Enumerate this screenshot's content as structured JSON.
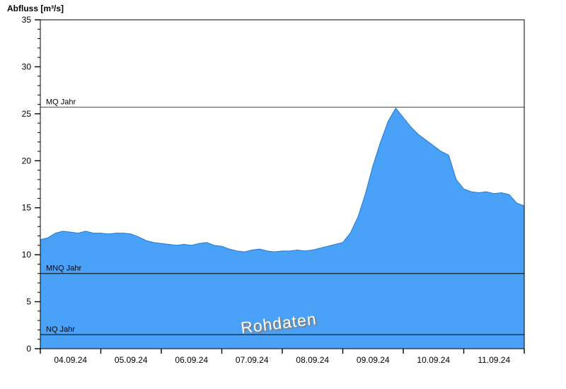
{
  "chart_data": {
    "type": "area",
    "title": "Abfluss [m³/s]",
    "watermark": "Rohdaten",
    "xlabel": "",
    "ylabel": "Abfluss [m³/s]",
    "ylim": [
      0,
      35
    ],
    "y_major_step": 5,
    "y_minor_step": 1,
    "y_tick_labels": [
      "0",
      "5",
      "10",
      "15",
      "20",
      "25",
      "30",
      "35"
    ],
    "x_day_labels": [
      "04.09.24",
      "05.09.24",
      "06.09.24",
      "07.09.24",
      "08.09.24",
      "09.09.24",
      "10.09.24",
      "11.09.24"
    ],
    "days": 8,
    "points_per_day": 8,
    "grid": false,
    "legend": "none",
    "series": [
      {
        "name": "Abfluss Rohdaten",
        "values": [
          11.6,
          11.8,
          12.3,
          12.5,
          12.4,
          12.3,
          12.5,
          12.3,
          12.3,
          12.2,
          12.3,
          12.3,
          12.2,
          11.9,
          11.5,
          11.3,
          11.2,
          11.1,
          11.0,
          11.1,
          11.0,
          11.2,
          11.3,
          11.0,
          10.9,
          10.6,
          10.4,
          10.3,
          10.5,
          10.6,
          10.4,
          10.3,
          10.4,
          10.4,
          10.5,
          10.4,
          10.5,
          10.7,
          10.9,
          11.1,
          11.3,
          12.3,
          14.0,
          16.5,
          19.5,
          22.0,
          24.2,
          25.6,
          24.6,
          23.6,
          22.8,
          22.2,
          21.6,
          21.0,
          20.6,
          18.0,
          17.0,
          16.7,
          16.6,
          16.7,
          16.5,
          16.6,
          16.4,
          15.5,
          15.2
        ]
      }
    ],
    "ref_lines": [
      {
        "label": "MQ Jahr",
        "value": 25.7,
        "color": "#007f2a"
      },
      {
        "label": "MNQ Jahr",
        "value": 8.0,
        "color": "#000000"
      },
      {
        "label": "NQ Jahr",
        "value": 1.5,
        "color": "#000000"
      }
    ],
    "colors": {
      "area_fill": "#4aa2f8",
      "area_line": "#1f77d0",
      "axis": "#000000",
      "background": "#ffffff"
    }
  }
}
